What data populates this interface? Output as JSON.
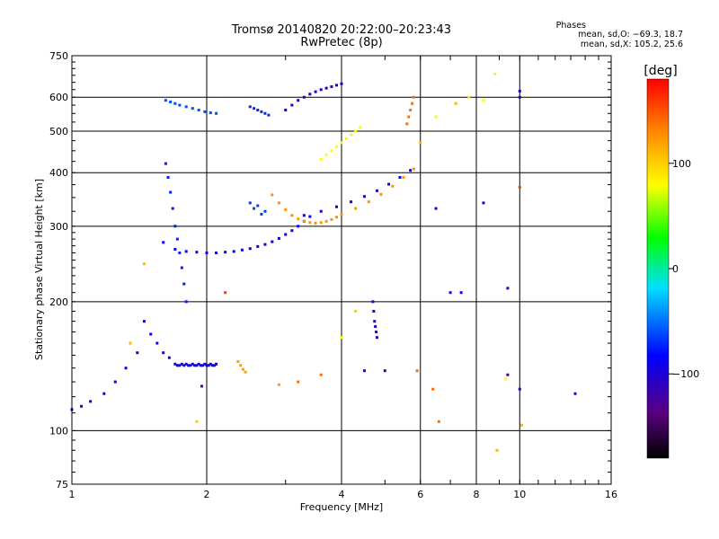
{
  "chart_data": {
    "type": "scatter",
    "title": "Tromsø 20140820 20:22:00–20:23:43",
    "subtitle": "RwPretec (8p)",
    "xlabel": "Frequency [MHz]",
    "ylabel": "Stationary phase Virtual Height [km]",
    "x_scale": "log",
    "y_scale": "log",
    "xlim": [
      1,
      16
    ],
    "ylim": [
      75,
      750
    ],
    "x_ticks": [
      1,
      2,
      4,
      6,
      8,
      10,
      16
    ],
    "x_tick_labels": [
      "1",
      "2",
      "4",
      "6",
      "8",
      "10",
      "16"
    ],
    "y_ticks": [
      75,
      100,
      200,
      300,
      400,
      500,
      600,
      750
    ],
    "y_tick_labels": [
      "75",
      "100",
      "200",
      "300",
      "400",
      "500",
      "600",
      "750"
    ],
    "grid": true,
    "phases": {
      "title": "Phases",
      "line1": "mean, sd,O: −69.3, 18.7",
      "line2": "mean, sd,X: 105.2, 25.6"
    },
    "colorbar": {
      "label": "[deg]",
      "range": [
        -180,
        180
      ],
      "ticks": [
        100,
        0,
        -100
      ],
      "tick_labels": [
        "100",
        "0",
        "−100"
      ],
      "colormap": "rainbow"
    },
    "traces": [
      {
        "name": "",
        "phase": -90,
        "f": [
          1.0,
          1.05,
          1.1,
          1.18,
          1.25,
          1.32,
          1.4
        ],
        "h": [
          112,
          114,
          117,
          122,
          130,
          140,
          152
        ]
      },
      {
        "name": "",
        "phase": -60,
        "f": [
          1.62,
          1.66,
          1.7,
          1.74,
          1.8,
          1.86,
          1.92,
          1.98,
          2.04,
          2.1
        ],
        "h": [
          590,
          585,
          580,
          575,
          570,
          565,
          560,
          555,
          552,
          550
        ]
      },
      {
        "name": "",
        "phase": -75,
        "f": [
          1.62,
          1.64,
          1.66,
          1.68,
          1.7,
          1.72,
          1.74,
          1.76,
          1.78,
          1.8
        ],
        "h": [
          420,
          390,
          360,
          330,
          300,
          280,
          260,
          240,
          220,
          200
        ]
      },
      {
        "name": "",
        "phase": -85,
        "f": [
          1.6,
          1.7,
          1.8,
          1.9,
          2.0,
          2.1,
          2.2,
          2.3,
          2.4,
          2.5,
          2.6,
          2.7,
          2.8,
          2.9,
          3.0,
          3.1,
          3.2,
          3.3,
          3.4
        ],
        "h": [
          275,
          265,
          262,
          261,
          260,
          260,
          261,
          262,
          264,
          266,
          269,
          272,
          276,
          281,
          287,
          293,
          300,
          308,
          316
        ]
      },
      {
        "name": "",
        "phase": -95,
        "f": [
          1.7,
          1.72,
          1.74,
          1.76,
          1.78,
          1.8,
          1.82,
          1.84,
          1.86,
          1.88,
          1.9,
          1.92,
          1.94,
          1.96,
          1.98,
          2.0,
          2.02,
          2.04,
          2.06,
          2.08,
          2.1
        ],
        "h": [
          143,
          142,
          142,
          143,
          142,
          143,
          142,
          142,
          143,
          142,
          142,
          143,
          142,
          142,
          143,
          142,
          142,
          143,
          142,
          142,
          143
        ]
      },
      {
        "name": "",
        "phase": 120,
        "f": [
          2.35,
          2.38,
          2.41,
          2.44
        ],
        "h": [
          145,
          142,
          139,
          137
        ]
      },
      {
        "name": "",
        "phase": -95,
        "f": [
          3.3,
          3.6,
          3.9,
          4.2,
          4.5,
          4.8,
          5.1,
          5.4,
          5.7
        ],
        "h": [
          318,
          325,
          333,
          342,
          352,
          363,
          376,
          390,
          405
        ]
      },
      {
        "name": "",
        "phase": 125,
        "f": [
          2.8,
          2.9,
          3.0,
          3.1,
          3.2,
          3.3,
          3.4,
          3.5,
          3.6,
          3.7,
          3.8,
          3.9,
          4.0,
          4.3,
          4.6,
          4.9,
          5.2,
          5.5,
          5.8
        ],
        "h": [
          355,
          340,
          328,
          318,
          312,
          308,
          306,
          305,
          306,
          308,
          311,
          315,
          320,
          330,
          342,
          356,
          372,
          390,
          408
        ]
      },
      {
        "name": "",
        "phase": -100,
        "f": [
          3.0,
          3.1,
          3.2,
          3.3,
          3.4,
          3.5,
          3.6,
          3.7,
          3.8,
          3.9,
          4.0
        ],
        "h": [
          560,
          575,
          590,
          600,
          610,
          618,
          625,
          630,
          635,
          640,
          645
        ]
      },
      {
        "name": "",
        "phase": 80,
        "f": [
          3.6,
          3.7,
          3.8,
          3.9,
          4.0,
          4.1,
          4.2,
          4.3,
          4.4
        ],
        "h": [
          430,
          440,
          450,
          460,
          470,
          480,
          490,
          500,
          510
        ]
      },
      {
        "name": "",
        "phase": 140,
        "f": [
          5.6,
          5.65,
          5.7,
          5.75,
          5.8
        ],
        "h": [
          520,
          540,
          560,
          580,
          600
        ]
      },
      {
        "name": "",
        "phase": -110,
        "f": [
          4.7,
          4.72,
          4.74,
          4.76,
          4.78,
          4.8
        ],
        "h": [
          200,
          190,
          180,
          175,
          170,
          165
        ]
      },
      {
        "name": "",
        "phase": -70,
        "f": [
          2.5,
          2.55,
          2.6,
          2.65,
          2.7,
          2.75
        ],
        "h": [
          570,
          565,
          560,
          555,
          550,
          545
        ]
      },
      {
        "name": "",
        "phase": -65,
        "f": [
          2.5,
          2.55,
          2.6,
          2.65,
          2.7
        ],
        "h": [
          340,
          330,
          335,
          320,
          325
        ]
      },
      {
        "name": "",
        "phase": -90,
        "f": [
          1.45,
          1.5,
          1.55,
          1.6,
          1.65
        ],
        "h": [
          180,
          168,
          160,
          152,
          148
        ]
      },
      {
        "name": "",
        "phase": -100,
        "f": [
          10.0,
          10.0
        ],
        "h": [
          600,
          620
        ]
      }
    ],
    "points": [
      {
        "f": 6.5,
        "h": 330,
        "phase": -100
      },
      {
        "f": 7.0,
        "h": 210,
        "phase": -100
      },
      {
        "f": 7.4,
        "h": 210,
        "phase": -100
      },
      {
        "f": 8.3,
        "h": 340,
        "phase": -100
      },
      {
        "f": 9.4,
        "h": 215,
        "phase": -110
      },
      {
        "f": 8.8,
        "h": 680,
        "phase": 80
      },
      {
        "f": 8.9,
        "h": 90,
        "phase": 110
      },
      {
        "f": 9.3,
        "h": 132,
        "phase": 80
      },
      {
        "f": 9.4,
        "h": 135,
        "phase": -130
      },
      {
        "f": 10.0,
        "h": 370,
        "phase": 160
      },
      {
        "f": 10.1,
        "h": 103,
        "phase": 110
      },
      {
        "f": 13.3,
        "h": 122,
        "phase": -80
      },
      {
        "f": 6.6,
        "h": 105,
        "phase": 140
      },
      {
        "f": 6.4,
        "h": 125,
        "phase": 140
      },
      {
        "f": 5.9,
        "h": 138,
        "phase": 140
      },
      {
        "f": 5.0,
        "h": 138,
        "phase": -100
      },
      {
        "f": 4.5,
        "h": 138,
        "phase": -110
      },
      {
        "f": 3.6,
        "h": 135,
        "phase": 140
      },
      {
        "f": 3.2,
        "h": 130,
        "phase": 140
      },
      {
        "f": 2.9,
        "h": 128,
        "phase": 120
      },
      {
        "f": 1.9,
        "h": 105,
        "phase": 100
      },
      {
        "f": 1.95,
        "h": 127,
        "phase": -130
      },
      {
        "f": 1.35,
        "h": 160,
        "phase": 110
      },
      {
        "f": 1.45,
        "h": 245,
        "phase": 110
      },
      {
        "f": 2.2,
        "h": 210,
        "phase": 160
      },
      {
        "f": 4.0,
        "h": 165,
        "phase": 80
      },
      {
        "f": 4.3,
        "h": 190,
        "phase": 100
      },
      {
        "f": 7.2,
        "h": 580,
        "phase": 110
      },
      {
        "f": 7.7,
        "h": 600,
        "phase": 90
      },
      {
        "f": 8.3,
        "h": 590,
        "phase": 80
      },
      {
        "f": 6.5,
        "h": 540,
        "phase": 80
      },
      {
        "f": 6.0,
        "h": 470,
        "phase": 110
      },
      {
        "f": 10.0,
        "h": 125,
        "phase": -110
      }
    ]
  }
}
